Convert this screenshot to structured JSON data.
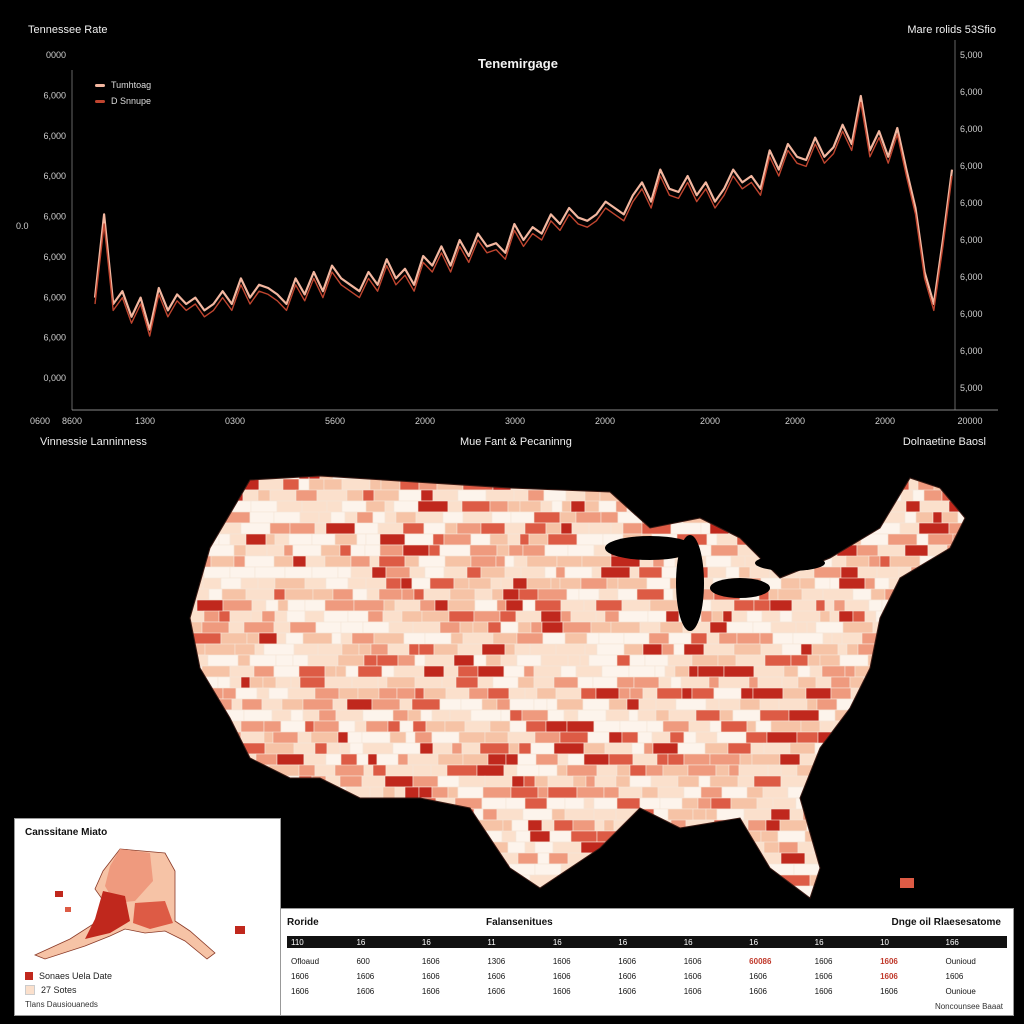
{
  "header": {
    "left_title": "Tennessee Rate",
    "right_title": "Mare rolids  53Sfio"
  },
  "chart_data": {
    "type": "line",
    "title": "Tenemirgage",
    "legend": [
      "Tumhtoag",
      "D Snnupe"
    ],
    "legend_colors": [
      "#f3b7a0",
      "#c0452f"
    ],
    "y_left_ticks": [
      "0000",
      "6,000",
      "6,000",
      "6,000",
      "6,000",
      "6,000",
      "6,000",
      "6,000",
      "0,000"
    ],
    "y_right_ticks": [
      "5,000",
      "6,000",
      "6,000",
      "6,000",
      "6,000",
      "6,000",
      "6,000",
      "6,000",
      "6,000",
      "5,000"
    ],
    "y_left_axis_label": "0.0",
    "x_ticks": [
      "0600",
      "8600",
      "1300",
      "0300",
      "5600",
      "2000",
      "3000",
      "2000",
      "2000",
      "2000",
      "2000",
      "20000"
    ],
    "ylim": [
      0,
      100
    ],
    "series": [
      {
        "name": "Tumhtoag",
        "color": "#f3b7a0",
        "values": [
          32,
          58,
          30,
          34,
          26,
          32,
          22,
          35,
          28,
          33,
          30,
          32,
          28,
          30,
          34,
          30,
          38,
          32,
          36,
          35,
          33,
          30,
          38,
          33,
          40,
          34,
          42,
          38,
          36,
          34,
          40,
          36,
          44,
          38,
          41,
          36,
          45,
          42,
          48,
          42,
          50,
          45,
          52,
          48,
          49,
          46,
          55,
          50,
          54,
          52,
          58,
          55,
          60,
          57,
          56,
          58,
          62,
          60,
          58,
          64,
          68,
          62,
          72,
          66,
          65,
          70,
          64,
          68,
          62,
          66,
          72,
          68,
          70,
          66,
          78,
          72,
          80,
          76,
          75,
          82,
          76,
          79,
          86,
          80,
          95,
          78,
          84,
          76,
          85,
          72,
          60,
          40,
          30,
          50,
          72
        ]
      },
      {
        "name": "D Snnupe",
        "color": "#c0452f",
        "values": [
          30,
          55,
          28,
          32,
          24,
          30,
          20,
          33,
          26,
          31,
          28,
          30,
          26,
          28,
          32,
          28,
          36,
          30,
          34,
          33,
          31,
          28,
          36,
          31,
          38,
          32,
          40,
          36,
          34,
          32,
          38,
          34,
          42,
          36,
          39,
          34,
          43,
          40,
          46,
          40,
          48,
          43,
          50,
          46,
          47,
          44,
          53,
          48,
          52,
          50,
          56,
          53,
          58,
          55,
          54,
          56,
          60,
          58,
          56,
          62,
          66,
          60,
          70,
          64,
          63,
          68,
          62,
          66,
          60,
          64,
          70,
          66,
          68,
          64,
          76,
          70,
          78,
          74,
          73,
          80,
          74,
          77,
          84,
          78,
          93,
          76,
          82,
          74,
          83,
          70,
          58,
          38,
          28,
          48,
          70
        ]
      }
    ]
  },
  "section_labels": {
    "left": "Vinnessie Lanninness",
    "center": "Mue Fant & Pecaninng",
    "right": "Dolnaetine Baosl"
  },
  "map": {
    "name": "US counties choropleth",
    "palette": [
      "#fdf4ec",
      "#fbe0cc",
      "#f6c3a6",
      "#ef9a7e",
      "#dd5b45",
      "#c0281d"
    ]
  },
  "inset": {
    "title": "Canssitane Miato",
    "legend": [
      {
        "label": "Sonaes Uela Date",
        "color": "#c0281d"
      },
      {
        "label": "27 Sotes",
        "color": "#fbe0cc"
      }
    ],
    "footer": "Tlans Dausiouaneds"
  },
  "table": {
    "header_left": "Roride",
    "header_center": "Falansenitues",
    "header_right": "Dnge oil Rlaesesatome",
    "columns": [
      "110",
      "16",
      "16",
      "11",
      "16",
      "16",
      "16",
      "16",
      "16",
      "10",
      "166"
    ],
    "rows": [
      [
        "Ofloaud",
        "600",
        "1606",
        "1306",
        "1606",
        "1606",
        "1606",
        "60086",
        "1606",
        "1606",
        "Ounioud"
      ],
      [
        "1606",
        "1606",
        "1606",
        "1606",
        "1606",
        "1606",
        "1606",
        "1606",
        "1606",
        "1606",
        "1606"
      ],
      [
        "1606",
        "1606",
        "1606",
        "1606",
        "1606",
        "1606",
        "1606",
        "1606",
        "1606",
        "1606",
        "Ounioue"
      ]
    ],
    "hot_cells": [
      [
        0,
        7
      ],
      [
        0,
        9
      ],
      [
        1,
        9
      ]
    ],
    "footer": "Noncounsee Baaat"
  },
  "colors": {
    "background": "#000000",
    "line_light": "#f3b7a0",
    "line_dark": "#c0452f",
    "map_high": "#c0281d"
  }
}
